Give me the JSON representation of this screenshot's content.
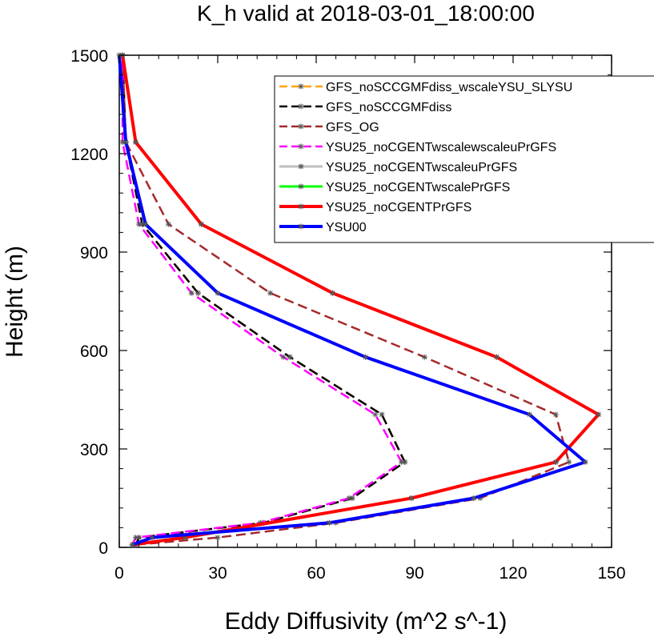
{
  "chart_data": {
    "type": "line",
    "title": "K_h valid at 2018-03-01_18:00:00",
    "xlabel": "Eddy Diffusivity (m^2 s^-1)",
    "ylabel": "Height (m)",
    "xlim": [
      0,
      150
    ],
    "ylim": [
      0,
      1500
    ],
    "xticks": [
      0,
      30,
      60,
      90,
      120,
      150
    ],
    "yticks": [
      0,
      300,
      600,
      900,
      1200,
      1500
    ],
    "xtick_labels": [
      "0",
      "30",
      "60",
      "90",
      "120",
      "150"
    ],
    "ytick_labels": [
      "0",
      "300",
      "600",
      "900",
      "1200",
      "1500"
    ],
    "grid": false,
    "legend_position": "top-right",
    "series": [
      {
        "name": "GFS_noSCCGMFdiss_wscaleYSU_SLYSU",
        "color": "#ffa500",
        "dash": "dashed",
        "width": 2.5,
        "x": [
          5,
          6,
          44,
          71,
          87,
          80,
          52,
          24,
          7,
          2,
          1
        ],
        "y": [
          8,
          30,
          75,
          150,
          260,
          405,
          580,
          775,
          985,
          1235,
          1500
        ]
      },
      {
        "name": "GFS_noSCCGMFdiss",
        "color": "#000000",
        "dash": "dashed",
        "width": 2.5,
        "x": [
          5,
          6,
          44,
          71,
          87,
          80,
          52,
          24,
          7,
          2,
          1
        ],
        "y": [
          8,
          30,
          75,
          150,
          260,
          405,
          580,
          775,
          985,
          1235,
          1500
        ]
      },
      {
        "name": "GFS_OG",
        "color": "#a52a2a",
        "dash": "dashed",
        "width": 2.5,
        "x": [
          5,
          30,
          66,
          110,
          137,
          133,
          93,
          46,
          15,
          2,
          1
        ],
        "y": [
          8,
          30,
          75,
          150,
          260,
          405,
          580,
          775,
          985,
          1235,
          1500
        ]
      },
      {
        "name": "YSU25_noCGENTwscalewscaleuPrGFS",
        "color": "#ff00ff",
        "dash": "dashed",
        "width": 2.5,
        "x": [
          4,
          5,
          43,
          70,
          86,
          78,
          50,
          22,
          6,
          1,
          1
        ],
        "y": [
          8,
          30,
          75,
          150,
          260,
          405,
          580,
          775,
          985,
          1235,
          1500
        ]
      },
      {
        "name": "YSU25_noCGENTwscaleuPrGFS",
        "color": "#bebebe",
        "dash": "solid",
        "width": 3,
        "x": [
          4,
          20,
          89,
          133,
          146,
          115,
          65,
          25,
          5,
          1
        ],
        "y": [
          8,
          30,
          150,
          260,
          405,
          580,
          775,
          985,
          1235,
          1500
        ]
      },
      {
        "name": "YSU25_noCGENTwscalePrGFS",
        "color": "#00ff00",
        "dash": "solid",
        "width": 3,
        "x": [
          4,
          20,
          89,
          133,
          146,
          115,
          65,
          25,
          5,
          1
        ],
        "y": [
          8,
          30,
          150,
          260,
          405,
          580,
          775,
          985,
          1235,
          1500
        ]
      },
      {
        "name": "YSU25_noCGENTPrGFS",
        "color": "#ff0000",
        "dash": "solid",
        "width": 4,
        "x": [
          4,
          20,
          89,
          133,
          146,
          115,
          65,
          25,
          5,
          1
        ],
        "y": [
          8,
          30,
          150,
          260,
          405,
          580,
          775,
          985,
          1235,
          1500
        ]
      },
      {
        "name": "YSU00",
        "color": "#0000ff",
        "dash": "solid",
        "width": 4,
        "x": [
          4,
          10,
          64,
          108,
          142,
          125,
          75,
          30,
          8,
          2,
          0
        ],
        "y": [
          8,
          30,
          75,
          150,
          260,
          405,
          580,
          775,
          985,
          1235,
          1500
        ]
      }
    ]
  }
}
